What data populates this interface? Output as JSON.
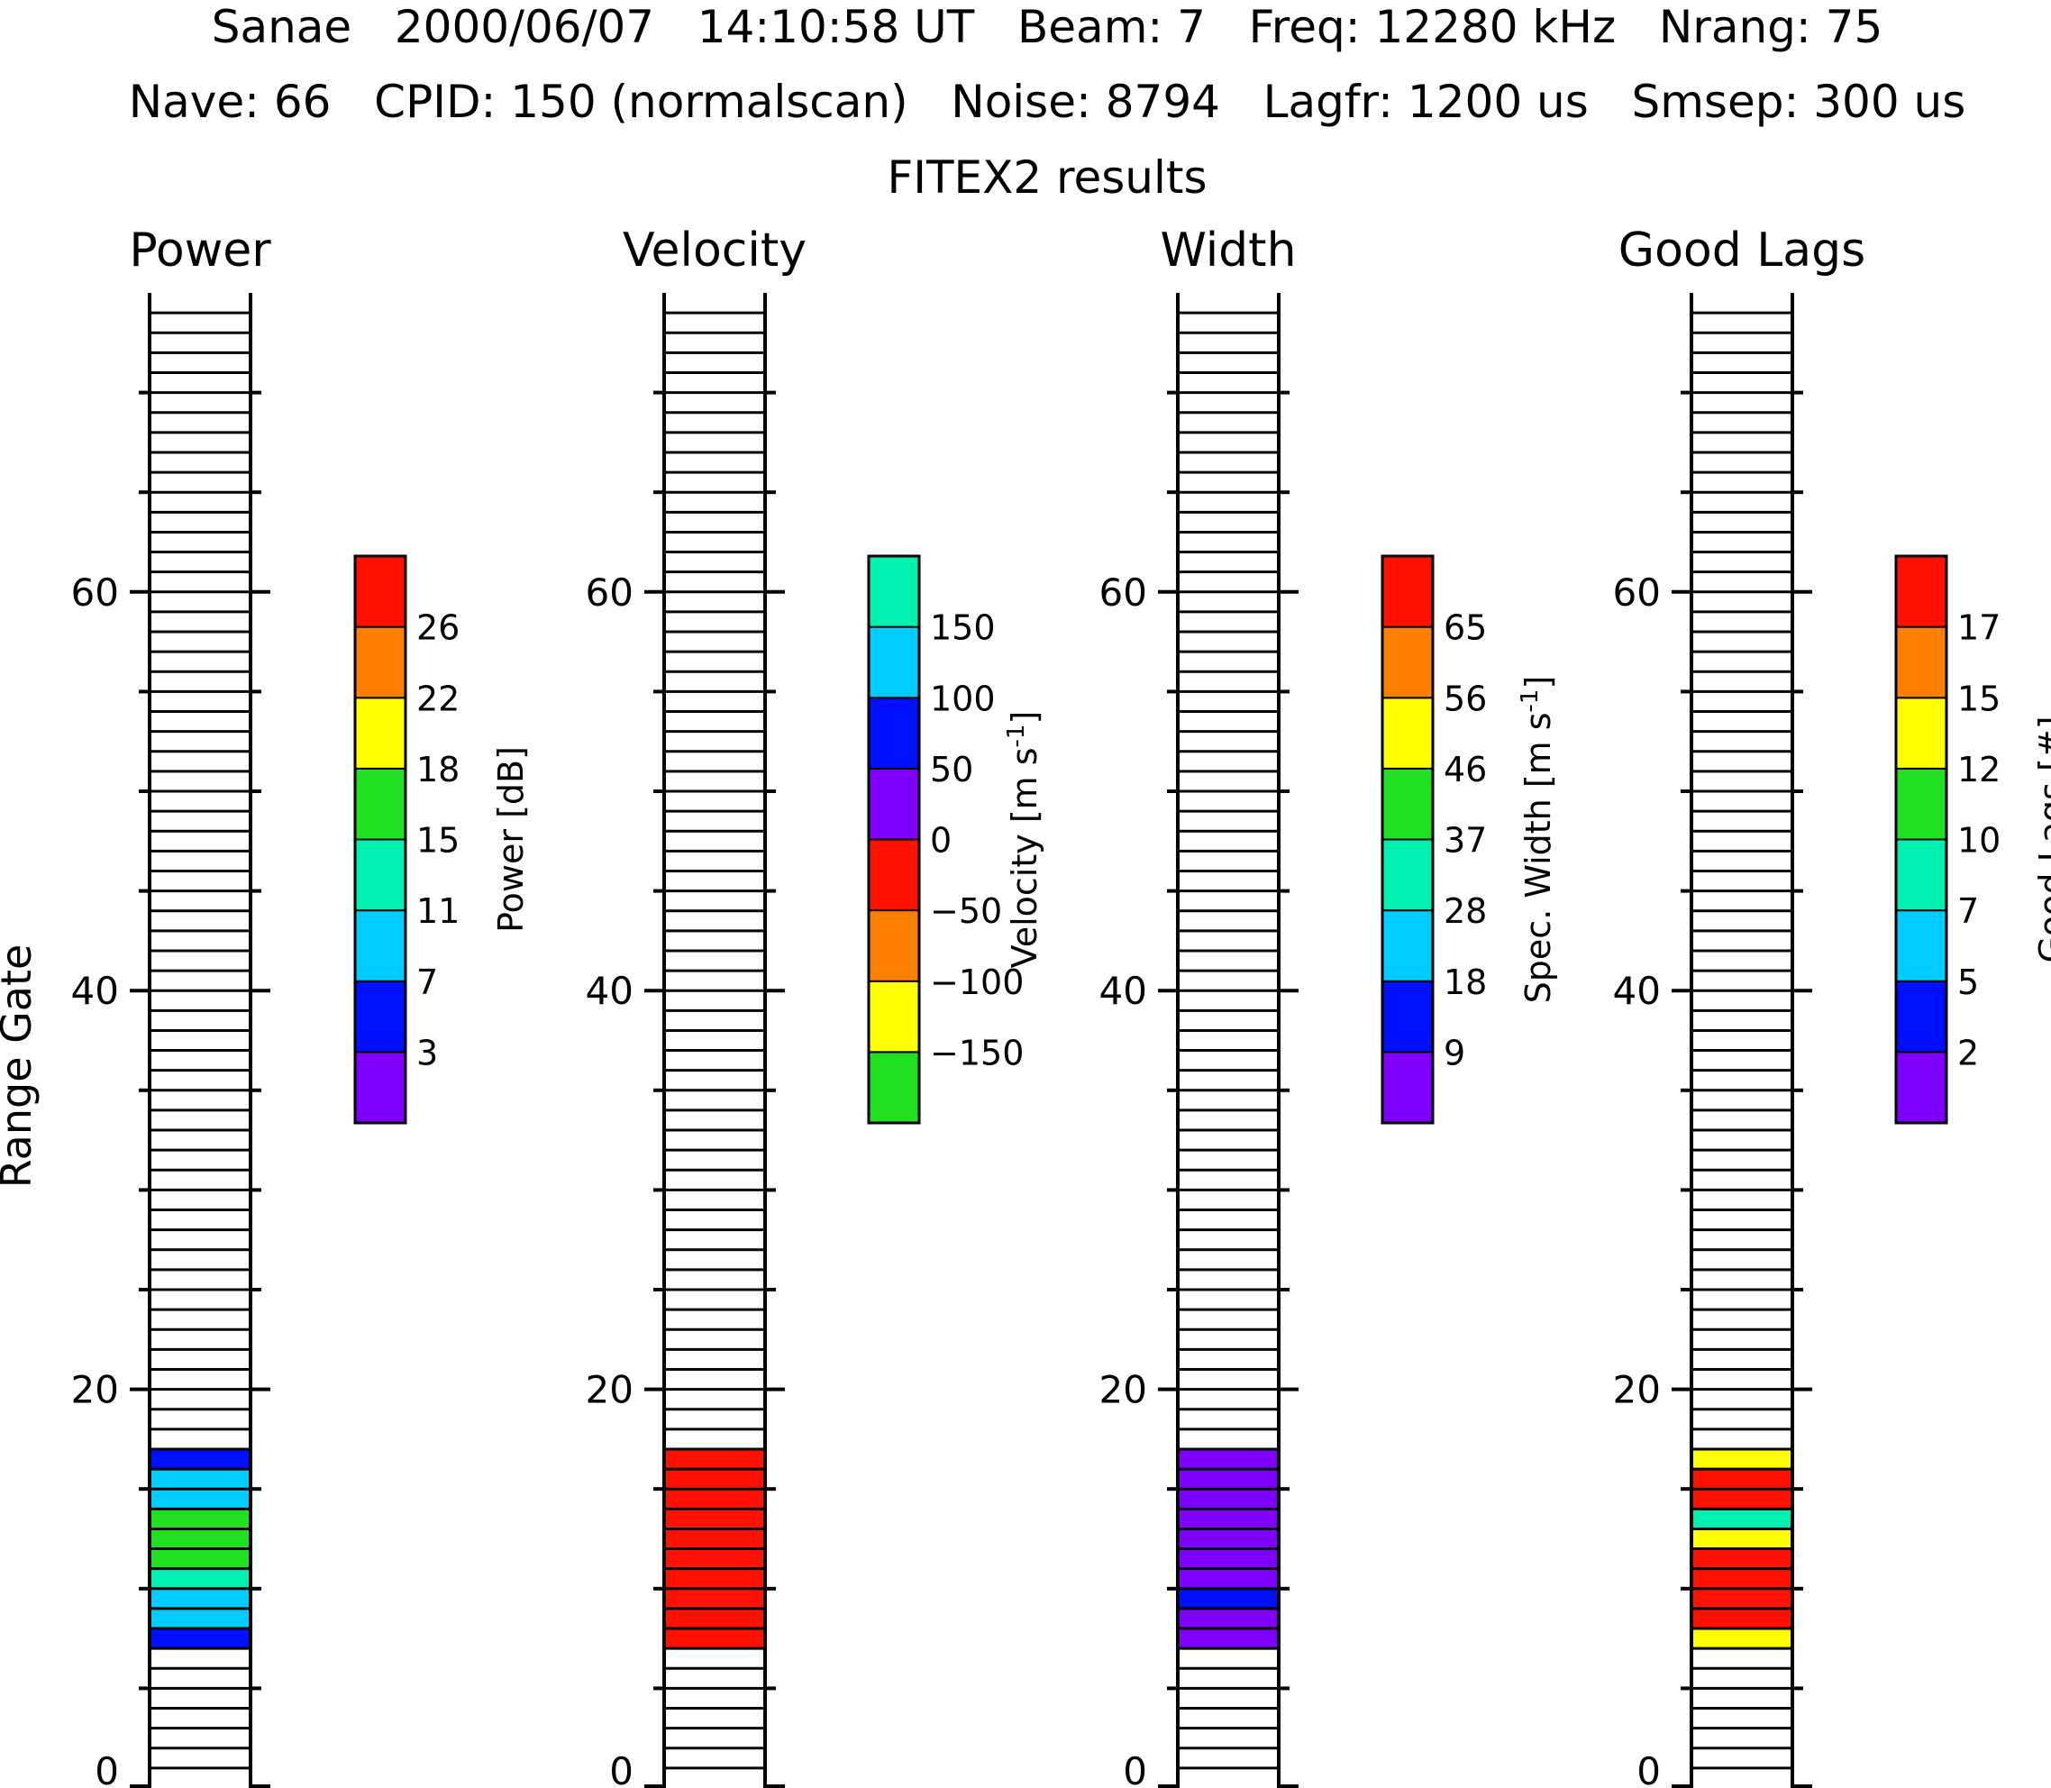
{
  "header": {
    "line1": "Sanae   2000/06/07   14:10:58 UT   Beam: 7   Freq: 12280 kHz   Nrang: 75",
    "line2": "Nave: 66   CPID: 150 (normalscan)   Noise: 8794   Lagfr: 1200 us   Smsep: 300 us",
    "line3": "FITEX2 results"
  },
  "chart_data": [
    {
      "type": "heatmap",
      "title": "Power",
      "ylabel": "Range Gate",
      "ylim": [
        0,
        75
      ],
      "yticks": [
        "0",
        "20",
        "40",
        "60"
      ],
      "colorbar": {
        "label": "Power [dB]",
        "tick_labels": [
          "3",
          "7",
          "11",
          "15",
          "18",
          "22",
          "26"
        ],
        "colors": [
          "#8000ff",
          "#0010ff",
          "#00ccff",
          "#00f0b0",
          "#20e020",
          "#ffff00",
          "#ff8000",
          "#ff1000"
        ]
      },
      "gates": [
        7,
        8,
        9,
        10,
        11,
        12,
        13,
        14,
        15,
        16
      ],
      "color_index": [
        1,
        2,
        2,
        3,
        4,
        4,
        4,
        2,
        2,
        1
      ],
      "empty_color": "#ffffff"
    },
    {
      "type": "heatmap",
      "title": "Velocity",
      "ylim": [
        0,
        75
      ],
      "yticks": [
        "0",
        "20",
        "40",
        "60"
      ],
      "colorbar": {
        "label": "Velocity [m s-1]",
        "tick_labels": [
          "−150",
          "−100",
          "−50",
          "0",
          "50",
          "100",
          "150"
        ],
        "colors": [
          "#20e020",
          "#ffff00",
          "#ff8000",
          "#ff1000",
          "#8000ff",
          "#0010ff",
          "#00ccff",
          "#00f0b0"
        ]
      },
      "gates": [
        7,
        8,
        9,
        10,
        11,
        12,
        13,
        14,
        15,
        16
      ],
      "color_index": [
        3,
        3,
        3,
        3,
        3,
        3,
        3,
        3,
        3,
        3
      ],
      "empty_color": "#ffffff"
    },
    {
      "type": "heatmap",
      "title": "Width",
      "ylim": [
        0,
        75
      ],
      "yticks": [
        "0",
        "20",
        "40",
        "60"
      ],
      "colorbar": {
        "label": "Spec. Width [m s-1]",
        "tick_labels": [
          "9",
          "18",
          "28",
          "37",
          "46",
          "56",
          "65"
        ],
        "colors": [
          "#8000ff",
          "#0010ff",
          "#00ccff",
          "#00f0b0",
          "#20e020",
          "#ffff00",
          "#ff8000",
          "#ff1000"
        ]
      },
      "gates": [
        7,
        8,
        9,
        10,
        11,
        12,
        13,
        14,
        15,
        16
      ],
      "color_index": [
        0,
        0,
        1,
        0,
        0,
        0,
        0,
        0,
        0,
        0
      ],
      "empty_color": "#ffffff"
    },
    {
      "type": "heatmap",
      "title": "Good Lags",
      "ylim": [
        0,
        75
      ],
      "yticks": [
        "0",
        "20",
        "40",
        "60"
      ],
      "colorbar": {
        "label": "Good Lags [#]",
        "tick_labels": [
          "2",
          "5",
          "7",
          "10",
          "12",
          "15",
          "17"
        ],
        "colors": [
          "#8000ff",
          "#0010ff",
          "#00ccff",
          "#00f0b0",
          "#20e020",
          "#ffff00",
          "#ff8000",
          "#ff1000"
        ]
      },
      "gates": [
        7,
        8,
        9,
        10,
        11,
        12,
        13,
        14,
        15,
        16
      ],
      "color_index": [
        5,
        7,
        7,
        7,
        7,
        5,
        3,
        7,
        7,
        5
      ],
      "empty_color": "#ffffff"
    }
  ]
}
